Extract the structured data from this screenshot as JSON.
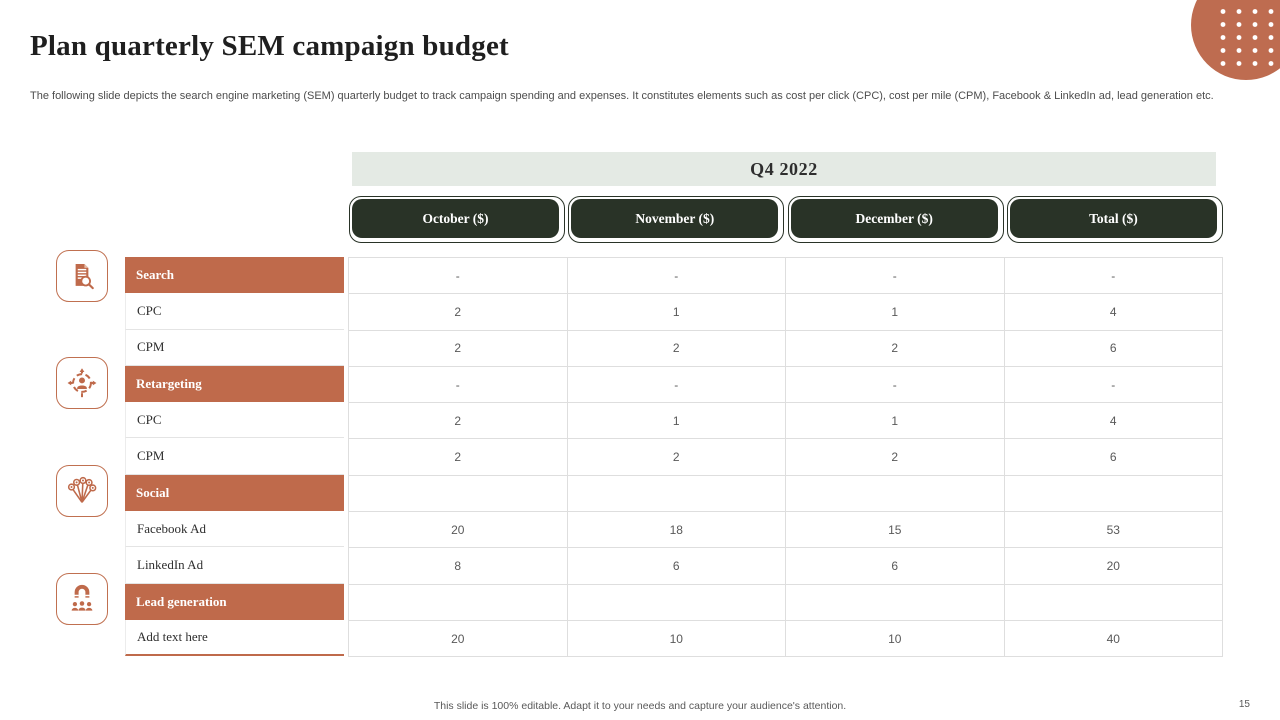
{
  "slide": {
    "title": "Plan quarterly SEM campaign budget",
    "subtitle": "The following slide depicts the search engine marketing (SEM) quarterly budget to track campaign spending and expenses. It constitutes elements such as cost per click (CPC), cost per mile (CPM), Facebook & LinkedIn ad, lead generation etc.",
    "footer": "This slide is 100% editable.  Adapt it to your needs and capture your audience's attention.",
    "page_number": "15"
  },
  "colors": {
    "accent_terracotta": "#bf6a4b",
    "dark_button": "#293327",
    "period_band": "#e4eae4",
    "grid_line": "#dedede",
    "value_text": "#595959"
  },
  "table": {
    "period": "Q4 2022",
    "columns": [
      "October ($)",
      "November ($)",
      "December ($)",
      "Total ($)"
    ],
    "rows": [
      {
        "label": "Search",
        "type": "header",
        "values": [
          "-",
          "-",
          "-",
          "-"
        ]
      },
      {
        "label": "CPC",
        "type": "data",
        "values": [
          "2",
          "1",
          "1",
          "4"
        ]
      },
      {
        "label": "CPM",
        "type": "data",
        "values": [
          "2",
          "2",
          "2",
          "6"
        ]
      },
      {
        "label": "Retargeting",
        "type": "header",
        "values": [
          "-",
          "-",
          "-",
          "-"
        ]
      },
      {
        "label": "CPC",
        "type": "data",
        "values": [
          "2",
          "1",
          "1",
          "4"
        ]
      },
      {
        "label": "CPM",
        "type": "data",
        "values": [
          "2",
          "2",
          "2",
          "6"
        ]
      },
      {
        "label": "Social",
        "type": "header",
        "values": [
          "",
          "",
          "",
          ""
        ]
      },
      {
        "label": "Facebook Ad",
        "type": "data",
        "values": [
          "20",
          "18",
          "15",
          "53"
        ]
      },
      {
        "label": "LinkedIn Ad",
        "type": "data",
        "values": [
          "8",
          "6",
          "6",
          "20"
        ]
      },
      {
        "label": "Lead generation",
        "type": "header",
        "values": [
          "",
          "",
          "",
          ""
        ]
      },
      {
        "label": "Add text here",
        "type": "data",
        "values": [
          "20",
          "10",
          "10",
          "40"
        ]
      }
    ]
  },
  "side_icons": [
    {
      "name": "search-document-icon"
    },
    {
      "name": "retargeting-icon"
    },
    {
      "name": "social-network-icon"
    },
    {
      "name": "lead-magnet-icon"
    }
  ]
}
